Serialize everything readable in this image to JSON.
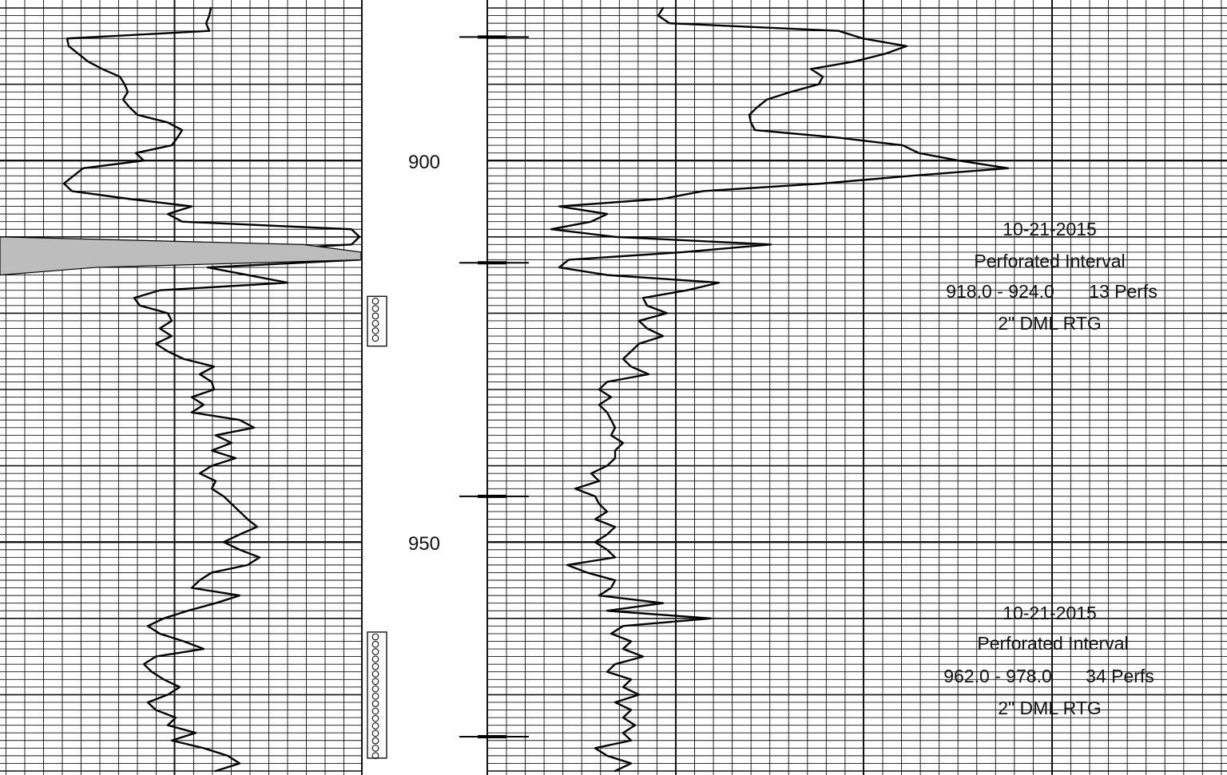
{
  "chart_data": [
    {
      "type": "line",
      "track": "left",
      "depth_ticks": [
        900,
        950
      ],
      "series": [
        {
          "points": [
            [
              880,
              264
            ],
            [
              881,
              262
            ],
            [
              882,
              258
            ],
            [
              883,
              262
            ],
            [
              884,
              84
            ],
            [
              885,
              86
            ],
            [
              886,
              98
            ],
            [
              887,
              110
            ],
            [
              888,
              128
            ],
            [
              889,
              150
            ],
            [
              890,
              156
            ],
            [
              891,
              160
            ],
            [
              892,
              154
            ],
            [
              893,
              162
            ],
            [
              894,
              172
            ],
            [
              895,
              210
            ],
            [
              896,
              228
            ],
            [
              897,
              222
            ],
            [
              898,
              215
            ],
            [
              899,
              170
            ],
            [
              900,
              180
            ],
            [
              901,
              104
            ],
            [
              902,
              92
            ],
            [
              903,
              80
            ],
            [
              904,
              90
            ],
            [
              905,
              160
            ],
            [
              906,
              240
            ],
            [
              907,
              210
            ],
            [
              908,
              228
            ],
            [
              909,
              440
            ],
            [
              910,
              450
            ],
            [
              911,
              440
            ],
            [
              912,
              270
            ],
            [
              913,
              450
            ],
            [
              914,
              260
            ],
            [
              915,
              310
            ],
            [
              916,
              360
            ],
            [
              917,
              200
            ],
            [
              918,
              168
            ],
            [
              919,
              175
            ],
            [
              920,
              210
            ],
            [
              921,
              215
            ],
            [
              922,
              200
            ],
            [
              923,
              215
            ],
            [
              924,
              195
            ],
            [
              925,
              210
            ],
            [
              926,
              230
            ],
            [
              927,
              268
            ],
            [
              928,
              250
            ],
            [
              929,
              265
            ],
            [
              930,
              268
            ],
            [
              931,
              240
            ],
            [
              932,
              255
            ],
            [
              933,
              240
            ],
            [
              934,
              300
            ],
            [
              935,
              318
            ],
            [
              936,
              270
            ],
            [
              937,
              290
            ],
            [
              938,
              265
            ],
            [
              939,
              295
            ],
            [
              940,
              265
            ],
            [
              941,
              250
            ],
            [
              942,
              270
            ],
            [
              943,
              265
            ],
            [
              944,
              280
            ],
            [
              945,
              290
            ],
            [
              946,
              300
            ],
            [
              947,
              310
            ],
            [
              948,
              322
            ],
            [
              949,
              300
            ],
            [
              950,
              280
            ],
            [
              951,
              300
            ],
            [
              952,
              325
            ],
            [
              953,
              310
            ],
            [
              954,
              265
            ],
            [
              955,
              250
            ],
            [
              956,
              240
            ],
            [
              957,
              300
            ],
            [
              958,
              270
            ],
            [
              959,
              235
            ],
            [
              960,
              205
            ],
            [
              961,
              185
            ],
            [
              962,
              200
            ],
            [
              963,
              230
            ],
            [
              964,
              255
            ],
            [
              965,
              195
            ],
            [
              966,
              180
            ],
            [
              967,
              190
            ],
            [
              968,
              205
            ],
            [
              969,
              225
            ],
            [
              970,
              210
            ],
            [
              971,
              185
            ],
            [
              972,
              195
            ],
            [
              973,
              220
            ],
            [
              974,
              210
            ],
            [
              975,
              245
            ],
            [
              976,
              215
            ],
            [
              977,
              255
            ],
            [
              978,
              285
            ],
            [
              979,
              300
            ],
            [
              980,
              270
            ]
          ]
        },
        {
          "shaded": true,
          "points": [
            [
              910,
              0
            ],
            [
              911,
              380
            ],
            [
              912,
              452
            ],
            [
              913,
              452
            ],
            [
              914,
              120
            ],
            [
              915,
              0
            ]
          ]
        }
      ],
      "perforations": [
        {
          "top": 918.0,
          "bottom": 924.0
        },
        {
          "top": 962.0,
          "bottom": 978.0
        }
      ]
    },
    {
      "type": "line",
      "track": "right",
      "depth_ticks": [
        900,
        950
      ],
      "series": [
        {
          "points": [
            [
              880,
              830
            ],
            [
              881,
              824
            ],
            [
              882,
              838
            ],
            [
              883,
              1050
            ],
            [
              884,
              1080
            ],
            [
              885,
              1135
            ],
            [
              886,
              1108
            ],
            [
              887,
              1070
            ],
            [
              888,
              1015
            ],
            [
              889,
              1030
            ],
            [
              890,
              1025
            ],
            [
              891,
              990
            ],
            [
              892,
              960
            ],
            [
              893,
              948
            ],
            [
              894,
              938
            ],
            [
              895,
              940
            ],
            [
              896,
              945
            ],
            [
              897,
              1050
            ],
            [
              898,
              1130
            ],
            [
              899,
              1150
            ],
            [
              900,
              1200
            ],
            [
              901,
              1262
            ],
            [
              902,
              1140
            ],
            [
              903,
              1030
            ],
            [
              904,
              880
            ],
            [
              905,
              830
            ],
            [
              906,
              700
            ],
            [
              907,
              760
            ],
            [
              908,
              740
            ],
            [
              909,
              690
            ],
            [
              910,
              770
            ],
            [
              911,
              965
            ],
            [
              912,
              855
            ],
            [
              913,
              712
            ],
            [
              914,
              700
            ],
            [
              915,
              760
            ],
            [
              916,
              900
            ],
            [
              917,
              860
            ],
            [
              918,
              805
            ],
            [
              919,
              810
            ],
            [
              920,
              835
            ],
            [
              921,
              800
            ],
            [
              922,
              810
            ],
            [
              923,
              830
            ],
            [
              924,
              800
            ],
            [
              925,
              790
            ],
            [
              926,
              780
            ],
            [
              927,
              790
            ],
            [
              928,
              812
            ],
            [
              929,
              760
            ],
            [
              930,
              750
            ],
            [
              931,
              765
            ],
            [
              932,
              750
            ],
            [
              933,
              760
            ],
            [
              934,
              765
            ],
            [
              935,
              770
            ],
            [
              936,
              765
            ],
            [
              937,
              780
            ],
            [
              938,
              770
            ],
            [
              939,
              770
            ],
            [
              940,
              760
            ],
            [
              941,
              740
            ],
            [
              942,
              750
            ],
            [
              943,
              720
            ],
            [
              944,
              745
            ],
            [
              945,
              750
            ],
            [
              946,
              760
            ],
            [
              947,
              745
            ],
            [
              948,
              770
            ],
            [
              949,
              760
            ],
            [
              950,
              745
            ],
            [
              951,
              760
            ],
            [
              952,
              770
            ],
            [
              953,
              710
            ],
            [
              954,
              735
            ],
            [
              955,
              770
            ],
            [
              956,
              765
            ],
            [
              957,
              750
            ],
            [
              958,
              830
            ],
            [
              959,
              760
            ],
            [
              960,
              890
            ],
            [
              961,
              780
            ],
            [
              962,
              765
            ],
            [
              963,
              790
            ],
            [
              964,
              780
            ],
            [
              965,
              805
            ],
            [
              966,
              770
            ],
            [
              967,
              760
            ],
            [
              968,
              790
            ],
            [
              969,
              780
            ],
            [
              970,
              800
            ],
            [
              971,
              770
            ],
            [
              972,
              790
            ],
            [
              973,
              780
            ],
            [
              974,
              795
            ],
            [
              975,
              780
            ],
            [
              976,
              790
            ],
            [
              977,
              745
            ],
            [
              978,
              760
            ],
            [
              979,
              790
            ],
            [
              980,
              770
            ]
          ]
        }
      ],
      "collar_depths": [
        883.8,
        913.4,
        944.0,
        975.5
      ],
      "annotations": [
        {
          "lines": [
            "10-21-2015",
            "Perforated Interval",
            "918.0 - 924.0     13 Perfs",
            "2\" DML RTG"
          ]
        },
        {
          "lines": [
            "10-21-2015",
            "Perforated Interval",
            "962.0 - 978.0     34 Perfs",
            "2\" DML RTG"
          ]
        }
      ]
    }
  ],
  "depth_labels": {
    "d900": "900",
    "d950": "950"
  },
  "annotation_1": {
    "date": "10-21-2015",
    "title": "Perforated Interval",
    "interval": "918.0 - 924.0",
    "perfs": "13 Perfs",
    "gun": "2\" DML RTG"
  },
  "annotation_2": {
    "date": "10-21-2015",
    "title": "Perforated Interval",
    "interval": "962.0 - 978.0",
    "perfs": "34 Perfs",
    "gun": "2\" DML RTG"
  },
  "colors": {
    "grid": "#111111",
    "curve": "#000000",
    "shading": "#bdbdbd"
  }
}
